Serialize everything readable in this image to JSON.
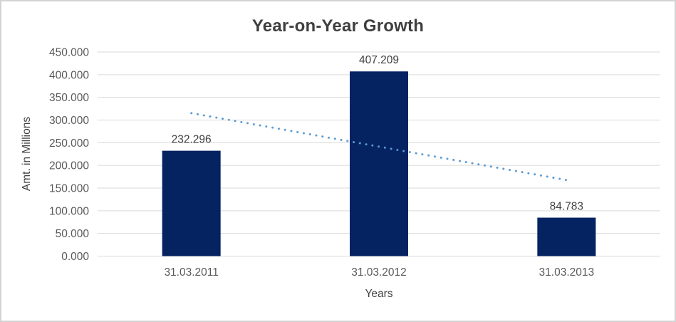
{
  "window": {
    "background": "#FFFFFF",
    "border_color": "#D3D3D3"
  },
  "chart_data": {
    "type": "bar",
    "title": "Year-on-Year Growth",
    "xlabel": "Years",
    "ylabel": "Amt. in Millions",
    "categories": [
      "31.03.2011",
      "31.03.2012",
      "31.03.2013"
    ],
    "values": [
      232.296,
      407.209,
      84.783
    ],
    "data_labels": [
      "232.296",
      "407.209",
      "84.783"
    ],
    "ylim": [
      0,
      450
    ],
    "y_tick_step": 50,
    "y_tick_labels": [
      "0.000",
      "50.000",
      "100.000",
      "150.000",
      "200.000",
      "250.000",
      "300.000",
      "350.000",
      "400.000",
      "450.000"
    ],
    "grid": true,
    "legend": "none",
    "trendline": {
      "type": "linear",
      "style": "dotted"
    },
    "colors": {
      "bar": "#052261",
      "gridline": "#D9D9D9",
      "trendline": "#5B9BD5",
      "title_text": "#3F3F3F",
      "tick_text": "#595959",
      "data_label_text": "#404040",
      "axis_title_text": "#404040"
    }
  }
}
